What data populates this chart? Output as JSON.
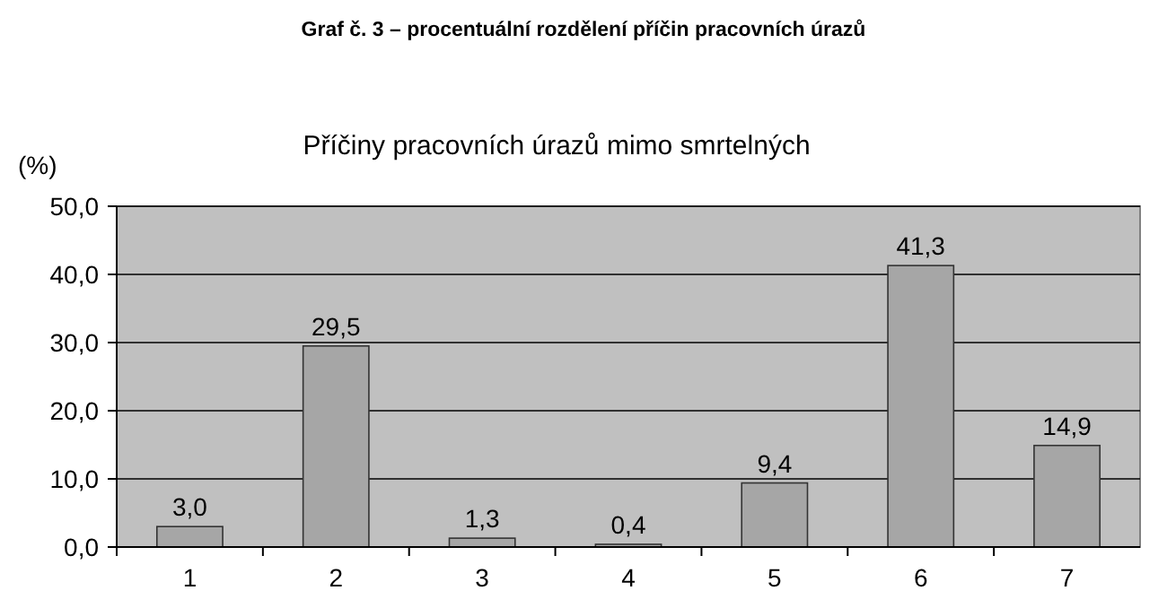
{
  "chart_data": {
    "type": "bar",
    "title": "Graf č. 3 – procentuální rozdělení příčin pracovních úrazů",
    "subtitle": "Příčiny pracovních úrazů mimo smrtelných",
    "ylabel": "(%)",
    "categories": [
      "1",
      "2",
      "3",
      "4",
      "5",
      "6",
      "7"
    ],
    "values": [
      3.0,
      29.5,
      1.3,
      0.4,
      9.4,
      41.3,
      14.9
    ],
    "value_labels": [
      "3,0",
      "29,5",
      "1,3",
      "0,4",
      "9,4",
      "41,3",
      "14,9"
    ],
    "color": "#a6a6a6",
    "ylim": [
      0,
      50
    ],
    "yticks": [
      {
        "value": 0,
        "label": "0,0"
      },
      {
        "value": 10,
        "label": "10,0"
      },
      {
        "value": 20,
        "label": "20,0"
      },
      {
        "value": 30,
        "label": "30,0"
      },
      {
        "value": 40,
        "label": "40,0"
      },
      {
        "value": 50,
        "label": "50,0"
      }
    ],
    "grid": "y"
  }
}
